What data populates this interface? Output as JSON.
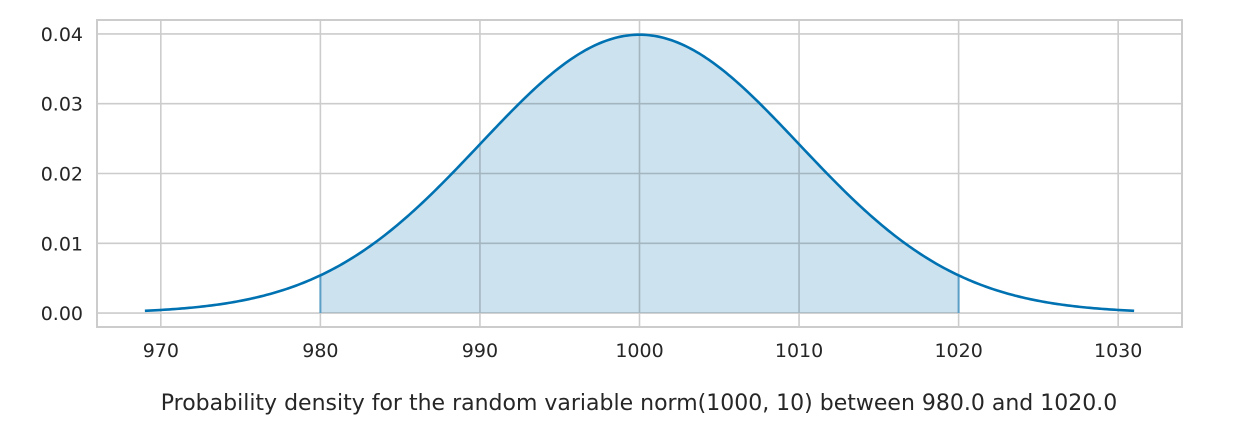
{
  "chart_data": {
    "type": "area",
    "title": "",
    "xlabel": "Probability density for the random variable norm(1000, 10) between 980.0 and 1020.0",
    "ylabel": "",
    "distribution": {
      "name": "norm",
      "mean": 1000,
      "sd": 10
    },
    "curve_range": [
      969,
      1031
    ],
    "shaded_range": [
      980.0,
      1020.0
    ],
    "xlim": [
      966,
      1034
    ],
    "ylim": [
      -0.002,
      0.042
    ],
    "x_ticks": [
      970,
      980,
      990,
      1000,
      1010,
      1020,
      1030
    ],
    "x_tick_labels": [
      "970",
      "980",
      "990",
      "1000",
      "1010",
      "1020",
      "1030"
    ],
    "y_ticks": [
      0.0,
      0.01,
      0.02,
      0.03,
      0.04
    ],
    "y_tick_labels": [
      "0.00",
      "0.01",
      "0.02",
      "0.03",
      "0.04"
    ],
    "grid": true,
    "legend": "none",
    "colors": {
      "line": "#0072b2",
      "fill": "#cce2ef",
      "edge": "#5b9ec6",
      "grid": "#cccccc"
    }
  }
}
